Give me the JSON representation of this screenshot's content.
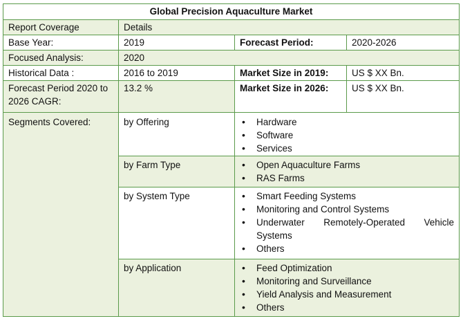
{
  "title": "Global Precision Aquaculture Market",
  "report_coverage_label": "Report Coverage",
  "details_label": "Details",
  "base_year_label": "Base Year:",
  "base_year_value": "2019",
  "forecast_period_label": "Forecast Period:",
  "forecast_period_value": "2020-2026",
  "focused_analysis_label": "Focused Analysis:",
  "focused_analysis_value": "2020",
  "historical_data_label": "Historical Data :",
  "historical_data_value": "2016 to 2019",
  "market_size_2019_label": "Market Size in 2019:",
  "market_size_2019_value": "US $ XX Bn.",
  "cagr_label": "Forecast Period 2020 to 2026 CAGR:",
  "cagr_value": "13.2 %",
  "market_size_2026_label": "Market Size in 2026:",
  "market_size_2026_value": "US $ XX Bn.",
  "segments_label": "Segments Covered:",
  "segments": [
    {
      "name": "by Offering",
      "items": [
        "Hardware",
        "Software",
        "Services"
      ]
    },
    {
      "name": "by Farm Type",
      "items": [
        "Open Aquaculture Farms",
        "RAS Farms"
      ]
    },
    {
      "name": "by System Type",
      "items": [
        "Smart Feeding Systems",
        "Monitoring and Control Systems",
        "Underwater Remotely-Operated Vehicle Systems",
        "Others"
      ]
    },
    {
      "name": "by Application",
      "items": [
        "Feed Optimization",
        "Monitoring and Surveillance",
        "Yield Analysis and Measurement",
        "Others"
      ]
    }
  ]
}
